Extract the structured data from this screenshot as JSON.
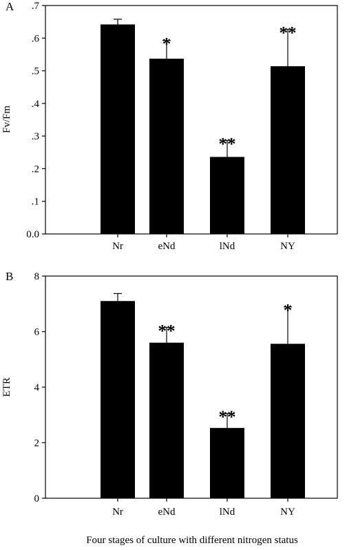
{
  "figure": {
    "caption": "Four stages of culture with different nitrogen status"
  },
  "chart_data": [
    {
      "type": "bar",
      "panel": "A",
      "ylabel": "Fv/Fm",
      "xlabel": "",
      "ylim": [
        0,
        0.7
      ],
      "yticks": [
        0,
        0.1,
        0.2,
        0.3,
        0.4,
        0.5,
        0.6,
        0.7
      ],
      "ytick_labels": [
        "0.0",
        ".1",
        ".2",
        ".3",
        ".4",
        ".5",
        ".6",
        ".7"
      ],
      "categories": [
        "Nr",
        "eNd",
        "lNd",
        "NY"
      ],
      "values": [
        0.642,
        0.537,
        0.236,
        0.514
      ],
      "errors": [
        0.016,
        0.056,
        0.051,
        0.113
      ],
      "significance": [
        "",
        "*",
        "**",
        "**"
      ],
      "bar_color": "#000000"
    },
    {
      "type": "bar",
      "panel": "B",
      "ylabel": "ETR",
      "xlabel": "",
      "ylim": [
        0,
        8
      ],
      "yticks": [
        0,
        2,
        4,
        6,
        8
      ],
      "ytick_labels": [
        "0",
        "2",
        "4",
        "6",
        "8"
      ],
      "categories": [
        "Nr",
        "eNd",
        "lNd",
        "NY"
      ],
      "values": [
        7.1,
        5.6,
        2.53,
        5.56
      ],
      "errors": [
        0.27,
        0.55,
        0.52,
        1.33
      ],
      "significance": [
        "",
        "**",
        "**",
        "*"
      ],
      "bar_color": "#000000"
    }
  ]
}
